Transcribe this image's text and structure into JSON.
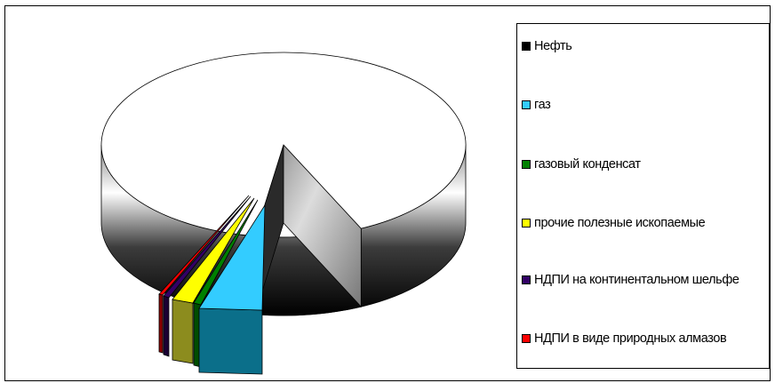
{
  "chart_data": {
    "type": "pie",
    "style": "3d-exploded",
    "series": [
      {
        "name": "Нефть",
        "value": 90.5,
        "color": "#000000"
      },
      {
        "name": "газ",
        "value": 5.8,
        "color": "#33CCFF"
      },
      {
        "name": "газовый конденсат",
        "value": 1.0,
        "color": "#008000"
      },
      {
        "name": "прочие полезные ископаемые",
        "value": 2.0,
        "color": "#FFFF00"
      },
      {
        "name": "НДПИ на континентальном шельфе",
        "value": 0.35,
        "color": "#330066"
      },
      {
        "name": "НДПИ в виде природных алмазов",
        "value": 0.35,
        "color": "#FF0000"
      }
    ],
    "legend_placement": "right",
    "title": ""
  }
}
